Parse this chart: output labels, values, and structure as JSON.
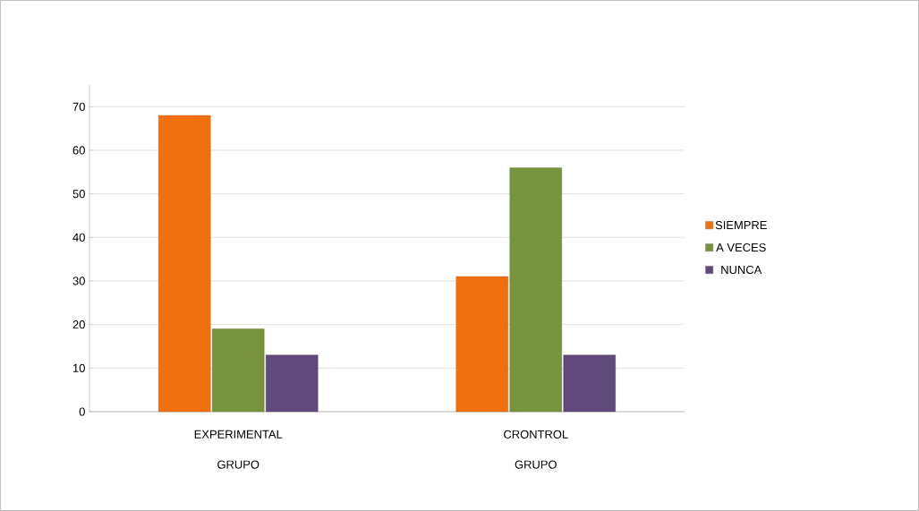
{
  "chart_data": {
    "type": "bar",
    "categories": [
      "EXPERIMENTAL",
      "CRONTROL"
    ],
    "series": [
      {
        "name": "SIEMPRE",
        "color": "#f07010",
        "values": [
          68,
          31
        ]
      },
      {
        "name": "A VECES",
        "color": "#77933c",
        "values": [
          19,
          56
        ]
      },
      {
        "name": "NUNCA",
        "color": "#604a7b",
        "values": [
          13,
          13
        ]
      }
    ],
    "annotations": [
      "GRUPO",
      "GRUPO"
    ],
    "ylim": [
      0,
      75
    ],
    "yticks": [
      0,
      10,
      20,
      30,
      40,
      50,
      60,
      70
    ],
    "grid": "y",
    "legend": "right"
  }
}
